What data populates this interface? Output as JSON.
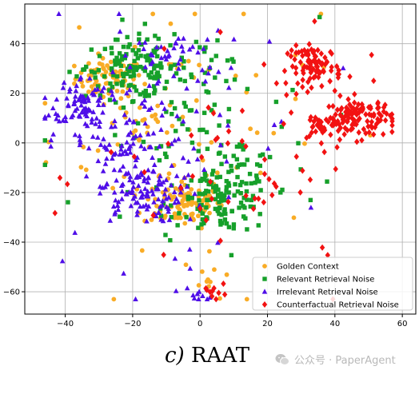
{
  "chart_data": {
    "type": "scatter",
    "title": "",
    "xlabel": "",
    "ylabel": "",
    "xlim": [
      -52,
      64
    ],
    "ylim": [
      -69,
      56
    ],
    "xticks": [
      -40,
      -20,
      0,
      20,
      40,
      60
    ],
    "yticks": [
      -60,
      -40,
      -20,
      0,
      20,
      40
    ],
    "xtick_labels": [
      "−40",
      "−20",
      "0",
      "20",
      "40",
      "60"
    ],
    "ytick_labels": [
      "−60",
      "−40",
      "−20",
      "0",
      "20",
      "40"
    ],
    "grid": true,
    "legend_position": "lower-right",
    "point_data_note": "approximate cluster structure",
    "series": [
      {
        "name": "Golden Context",
        "color": "#f9ac26",
        "marker": "circle",
        "clusters": [
          {
            "cx": -27,
            "cy": 26,
            "sx": 5,
            "sy": 4,
            "n": 80
          },
          {
            "cx": -5,
            "cy": -24,
            "sx": 6,
            "sy": 5,
            "n": 100
          },
          {
            "cx": -15,
            "cy": 8,
            "sx": 3,
            "sy": 3,
            "n": 15
          },
          {
            "cx": 3,
            "cy": -55,
            "sx": 4,
            "sy": 5,
            "n": 12
          },
          {
            "cx": -5,
            "cy": 10,
            "sx": 20,
            "sy": 25,
            "n": 70
          }
        ]
      },
      {
        "name": "Relevant Retrieval Noise",
        "color": "#16a02a",
        "marker": "square",
        "clusters": [
          {
            "cx": -20,
            "cy": 30,
            "sx": 7,
            "sy": 6,
            "n": 110
          },
          {
            "cx": 7,
            "cy": -24,
            "sx": 7,
            "sy": 6,
            "n": 110
          },
          {
            "cx": 10,
            "cy": -7,
            "sx": 6,
            "sy": 4,
            "n": 25
          },
          {
            "cx": -6,
            "cy": 30,
            "sx": 12,
            "sy": 8,
            "n": 40
          },
          {
            "cx": -5,
            "cy": 0,
            "sx": 20,
            "sy": 25,
            "n": 85
          }
        ]
      },
      {
        "name": "Irrelevant Retrieval Noise",
        "color": "#4f0ee8",
        "marker": "triangle",
        "clusters": [
          {
            "cx": -35,
            "cy": 17,
            "sx": 4,
            "sy": 5,
            "n": 70
          },
          {
            "cx": -18,
            "cy": -20,
            "sx": 6,
            "sy": 6,
            "n": 110
          },
          {
            "cx": -24,
            "cy": 0,
            "sx": 9,
            "sy": 8,
            "n": 70
          },
          {
            "cx": -8,
            "cy": 35,
            "sx": 8,
            "sy": 5,
            "n": 40
          },
          {
            "cx": 0,
            "cy": -61,
            "sx": 2,
            "sy": 2,
            "n": 10
          },
          {
            "cx": -10,
            "cy": 0,
            "sx": 20,
            "sy": 25,
            "n": 70
          }
        ]
      },
      {
        "name": "Counterfactual Retrieval Noise",
        "color": "#f21212",
        "marker": "diamond",
        "clusters": [
          {
            "cx": 34,
            "cy": 31,
            "sx": 4,
            "sy": 4,
            "n": 90
          },
          {
            "cx": 47,
            "cy": 10,
            "sx": 5,
            "sy": 4,
            "n": 110
          },
          {
            "cx": 36,
            "cy": 7,
            "sx": 3,
            "sy": 3,
            "n": 30
          },
          {
            "cx": 4,
            "cy": -59,
            "sx": 2,
            "sy": 2,
            "n": 10
          },
          {
            "cx": 15,
            "cy": -15,
            "sx": 22,
            "sy": 22,
            "n": 60
          }
        ]
      }
    ]
  },
  "caption": {
    "letter": "c)",
    "name": "RAAT"
  },
  "watermark": {
    "text": "公众号 · PaperAgent"
  }
}
